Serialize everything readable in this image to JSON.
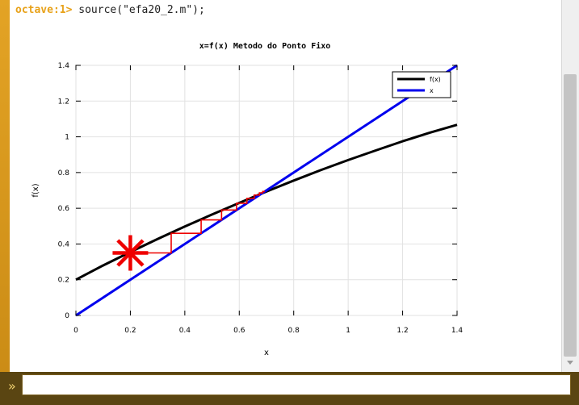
{
  "terminal": {
    "prompt": "octave:1>",
    "command": " source(\"efa20_2.m\");"
  },
  "input": {
    "icon": "double-chevron-right-icon",
    "value": ""
  },
  "chart_data": {
    "type": "line",
    "title": "x=f(x) Metodo do Ponto Fixo",
    "xlabel": "x",
    "ylabel": "f(x)",
    "xlim": [
      0,
      1.4
    ],
    "ylim": [
      0,
      1.4
    ],
    "xticks": [
      "0",
      "0.2",
      "0.4",
      "0.6",
      "0.8",
      "1",
      "1.2",
      "1.4"
    ],
    "yticks": [
      "0",
      "0.2",
      "0.4",
      "0.6",
      "0.8",
      "1",
      "1.2",
      "1.4"
    ],
    "grid": true,
    "legend_position": "top-right",
    "series": [
      {
        "name": "f(x)",
        "color": "#000000",
        "x": [
          0,
          0.1,
          0.2,
          0.3,
          0.4,
          0.5,
          0.6,
          0.7,
          0.8,
          0.9,
          1.0,
          1.1,
          1.2,
          1.3,
          1.4
        ],
        "y": [
          0.2,
          0.28,
          0.355,
          0.428,
          0.498,
          0.565,
          0.63,
          0.694,
          0.755,
          0.814,
          0.87,
          0.923,
          0.975,
          1.023,
          1.067
        ]
      },
      {
        "name": "x",
        "color": "#0000ee",
        "x": [
          0,
          1.4
        ],
        "y": [
          0,
          1.4
        ]
      }
    ],
    "iteration_path": {
      "color": "#ee0000",
      "x": [
        0.2,
        0.35,
        0.35,
        0.46,
        0.46,
        0.535,
        0.535,
        0.59,
        0.59,
        0.628,
        0.628,
        0.655,
        0.655,
        0.674,
        0.674,
        0.686,
        0.686,
        0.694
      ],
      "y": [
        0.35,
        0.35,
        0.46,
        0.46,
        0.535,
        0.535,
        0.59,
        0.59,
        0.628,
        0.628,
        0.655,
        0.655,
        0.674,
        0.674,
        0.686,
        0.686,
        0.694,
        0.694
      ]
    },
    "start_marker": {
      "x": 0.2,
      "y": 0.35,
      "color": "#ee0000",
      "symbol": "star"
    }
  }
}
